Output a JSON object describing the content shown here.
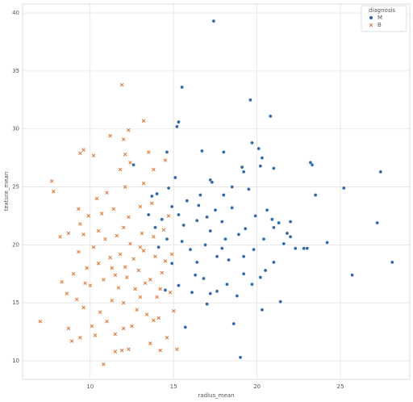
{
  "chart_data": {
    "type": "scatter",
    "xlabel": "radius_mean",
    "ylabel": "texture_mean",
    "xlim": [
      5.95,
      29.15
    ],
    "ylim": [
      8.4,
      40.77
    ],
    "xticks": [
      10,
      15,
      20,
      25
    ],
    "yticks": [
      10,
      15,
      20,
      25,
      30,
      35,
      40
    ],
    "grid": true,
    "legend_title": "diagnosis",
    "legend_loc": "upper right",
    "series": [
      {
        "name": "M",
        "color": "#2f6aa8",
        "marker": "circle",
        "x": [
          17.4,
          15.5,
          19.6,
          20.8,
          15.3,
          15.2,
          19.7,
          27.4,
          28.1,
          25.7,
          27.2,
          25.2,
          24.2,
          23.5,
          23.3,
          23.2,
          19.0,
          20.3,
          21.4,
          18.6,
          15.7,
          14.6,
          16.7,
          18.0,
          20.1,
          20.3,
          21.0,
          20.2,
          19.1,
          19.2,
          17.2,
          17.3,
          15.1,
          14.7,
          12.6,
          13.7,
          22.3,
          21.6,
          22.8,
          17.6,
          17.2,
          16.8,
          16.3,
          16.4,
          18.3,
          19.2,
          20.2,
          20.5,
          17.9,
          18.1,
          18.9,
          19.3,
          19.9,
          20.6,
          20.9,
          21.3,
          21.8,
          17.0,
          16.4,
          15.6,
          15.3,
          14.9,
          14.3,
          13.9,
          13.5,
          14.0,
          15.8,
          16.5,
          17.5,
          18.5,
          18.0,
          19.5,
          17.6,
          16.0,
          15.5,
          14.6,
          14.1,
          14.9,
          15.3,
          16.1,
          17.0,
          18.8,
          19.7,
          21.0,
          20.4,
          21.0,
          22.0,
          19.2,
          23.0,
          22.0,
          18.5,
          16.6,
          17.2,
          19.8,
          14.5,
          16.9,
          17.9,
          18.2
        ],
        "values": [
          39.3,
          33.6,
          32.5,
          31.1,
          30.6,
          30.2,
          28.8,
          26.3,
          18.5,
          17.4,
          21.9,
          24.9,
          20.2,
          24.3,
          26.9,
          27.1,
          10.3,
          14.4,
          15.1,
          13.2,
          12.9,
          28.0,
          28.1,
          28.0,
          28.3,
          27.5,
          26.6,
          26.8,
          26.7,
          26.3,
          25.6,
          25.4,
          25.8,
          24.9,
          26.9,
          24.2,
          19.7,
          20.1,
          19.7,
          16.0,
          15.8,
          17.1,
          17.4,
          18.5,
          18.7,
          17.5,
          17.2,
          17.8,
          19.7,
          20.5,
          20.9,
          21.4,
          22.5,
          23.0,
          22.2,
          21.9,
          21.0,
          22.4,
          22.1,
          21.7,
          22.6,
          23.3,
          22.2,
          21.5,
          22.6,
          24.4,
          23.8,
          23.4,
          23.0,
          23.2,
          24.3,
          24.8,
          19.0,
          19.6,
          20.3,
          20.5,
          19.8,
          18.4,
          16.5,
          15.9,
          14.9,
          15.6,
          16.6,
          18.5,
          20.5,
          21.5,
          22.0,
          19.0,
          19.7,
          20.7,
          25.0,
          24.3,
          21.2,
          19.6,
          16.1,
          20.0,
          22.0,
          16.6
        ]
      },
      {
        "name": "B",
        "color": "#e07b3a",
        "marker": "x",
        "x": [
          11.9,
          13.2,
          12.3,
          11.2,
          12.0,
          9.6,
          9.4,
          10.2,
          13.5,
          14.5,
          12.1,
          7.7,
          7.8,
          8.2,
          8.7,
          9.4,
          9.6,
          9.3,
          8.3,
          8.6,
          9.2,
          9.6,
          7.0,
          8.7,
          9.4,
          8.9,
          10.8,
          11.5,
          11.9,
          12.3,
          13.6,
          14.2,
          14.6,
          15.2,
          10.3,
          11.5,
          12.5,
          13.8,
          10.6,
          11.3,
          12.0,
          13.0,
          14.0,
          14.8,
          10.0,
          10.8,
          11.5,
          12.2,
          12.9,
          13.6,
          14.3,
          9.8,
          10.5,
          11.2,
          11.8,
          12.6,
          13.2,
          13.9,
          14.5,
          10.2,
          10.9,
          11.6,
          12.4,
          13.1,
          13.8,
          14.4,
          9.9,
          10.7,
          11.4,
          12.3,
          13.0,
          13.7,
          11.0,
          12.1,
          13.2,
          10.4,
          9.0,
          9.3,
          12.7,
          11.7,
          12.8,
          13.4,
          11.0,
          12.0,
          14.1,
          10.1,
          13.0,
          12.0,
          10.5,
          14.7,
          11.8,
          12.4,
          13.8,
          15.0,
          14.9,
          9.7,
          11.3,
          12.1,
          13.3,
          14.2
        ],
        "values": [
          33.8,
          30.7,
          29.9,
          29.4,
          29.1,
          28.2,
          27.9,
          27.7,
          28.0,
          27.3,
          27.8,
          25.5,
          24.6,
          20.7,
          21.0,
          21.8,
          20.9,
          19.4,
          16.8,
          15.8,
          15.3,
          14.6,
          13.4,
          12.8,
          12.0,
          11.7,
          9.7,
          10.8,
          10.9,
          11.0,
          11.5,
          10.9,
          12.0,
          11.0,
          12.2,
          12.3,
          13.0,
          13.5,
          14.2,
          15.2,
          15.0,
          15.5,
          15.5,
          15.9,
          16.5,
          17.0,
          17.4,
          17.2,
          17.8,
          17.0,
          17.6,
          18.0,
          18.4,
          18.9,
          19.2,
          18.8,
          19.5,
          19.0,
          18.6,
          19.8,
          20.5,
          20.8,
          20.1,
          21.0,
          20.7,
          21.3,
          22.5,
          22.7,
          23.1,
          22.4,
          23.3,
          23.6,
          24.5,
          25.0,
          25.3,
          24.0,
          17.5,
          23.1,
          16.2,
          16.3,
          14.4,
          14.0,
          13.4,
          12.8,
          13.7,
          13.0,
          19.8,
          21.5,
          21.2,
          22.5,
          26.5,
          27.1,
          26.5,
          14.3,
          19.2,
          16.7,
          18.0,
          18.1,
          16.7,
          16.2
        ]
      }
    ]
  }
}
